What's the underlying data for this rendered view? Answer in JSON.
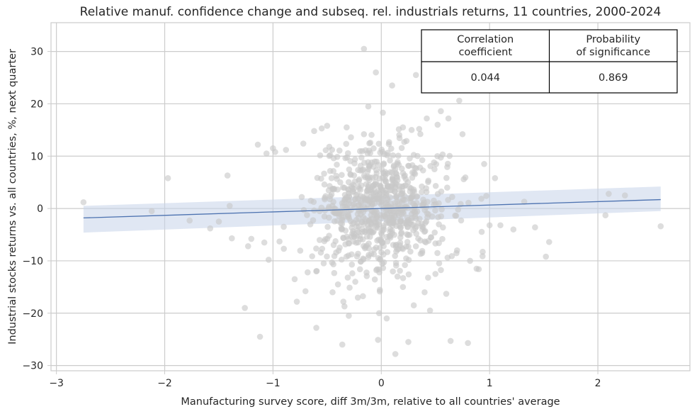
{
  "chart_data": {
    "type": "scatter",
    "title": "Relative manuf. confidence change and subseq. rel. industrials returns, 11 countries, 2000-2024",
    "xlabel": "Manufacturing survey score, diff 3m/3m, relative to all countries' average",
    "ylabel": "Industrial stocks returns vs. all countries, %, next quarter",
    "xlim": [
      -3.05,
      2.85
    ],
    "ylim": [
      -31,
      35.5
    ],
    "xticks": [
      -3,
      -2,
      -1,
      0,
      1,
      2
    ],
    "yticks": [
      -30,
      -20,
      -10,
      0,
      10,
      20,
      30
    ],
    "xtick_labels": [
      "−3",
      "−2",
      "−1",
      "0",
      "1",
      "2"
    ],
    "ytick_labels": [
      "−30",
      "−20",
      "−10",
      "0",
      "10",
      "20",
      "30"
    ],
    "grid": true,
    "point_color": "#c8c8c8",
    "line_color": "#4c72b0",
    "band_color": "#c7d4ea",
    "regression": {
      "x": [
        -2.75,
        2.58
      ],
      "y": [
        -1.8,
        1.7
      ],
      "band_lower": [
        -4.6,
        -0.5
      ],
      "band_upper": [
        0.5,
        4.2
      ]
    },
    "points": {
      "x": [
        -2.75,
        -2.12,
        -1.97,
        -1.77,
        -1.5,
        -1.42,
        -1.38,
        -1.26,
        -1.23,
        -1.2,
        -1.14,
        -1.12,
        -1.08,
        -1.04,
        -0.98,
        -0.94,
        -0.9,
        -0.78,
        -0.68,
        -0.6,
        -0.45,
        -0.36,
        -0.35,
        -0.34,
        -0.05,
        -0.03,
        -0.02,
        0.13,
        0.25,
        0.32,
        0.55,
        0.64,
        0.72,
        0.8,
        0.88,
        0.97,
        1.0,
        1.1,
        1.32,
        1.42,
        1.52,
        1.55,
        2.07,
        2.1,
        2.25,
        2.58,
        -0.62,
        -0.55,
        -0.5,
        -0.32,
        -0.28,
        0.2,
        0.28,
        0.35,
        0.42,
        0.75,
        0.62,
        -0.72,
        -0.48,
        -0.12,
        -1.0,
        -1.06,
        -0.88,
        -1.4,
        -1.58,
        -0.16,
        0.1,
        0.05,
        -0.24,
        0.2,
        0.15,
        0.4,
        -0.4,
        0.6,
        0.5,
        0.9,
        -0.8,
        -0.7,
        0.3,
        0.45,
        -0.6,
        -0.3,
        0.7,
        0.82,
        1.22,
        0.95,
        1.05,
        0.52
      ],
      "y": [
        1.2,
        -0.5,
        5.8,
        -2.3,
        -2.5,
        6.3,
        -5.7,
        -19,
        -7.2,
        -5.8,
        12.2,
        -24.5,
        -6.5,
        -9.8,
        10.8,
        -6.3,
        -7.7,
        -17.8,
        -12.2,
        -22.8,
        -16,
        -26,
        -17.8,
        -18.7,
        26,
        -25.1,
        -20,
        -27.8,
        -25.5,
        25.5,
        18.6,
        -25.3,
        20.6,
        -25.7,
        -11.5,
        2.4,
        -3.2,
        -3.2,
        1.3,
        -3.6,
        -9.2,
        -6.4,
        -1.3,
        2.8,
        2.5,
        -3.4,
        14.8,
        15.3,
        15.8,
        15.5,
        13.6,
        15.5,
        15,
        15.2,
        17.2,
        14.2,
        17.2,
        12.4,
        11.8,
        19.5,
        11.5,
        10.5,
        11.2,
        0.5,
        -3.8,
        30.5,
        23.5,
        -21,
        -14,
        -15,
        -13,
        -16,
        -14.5,
        -16.3,
        -12.5,
        -11.6,
        -13.5,
        -15.8,
        -18.5,
        -19.5,
        -12,
        -20.5,
        -8,
        -10,
        -4,
        8.5,
        5.8,
        16
      ]
    },
    "cloud": {
      "n": 780,
      "x_mean": 0.0,
      "x_sd": 0.3,
      "y_mean": 0.0,
      "y_sd": 6.0,
      "seed": 7
    },
    "table": {
      "headers": [
        "Correlation\ncoefficient",
        "Probability\nof significance"
      ],
      "values": [
        "0.044",
        "0.869"
      ]
    }
  }
}
